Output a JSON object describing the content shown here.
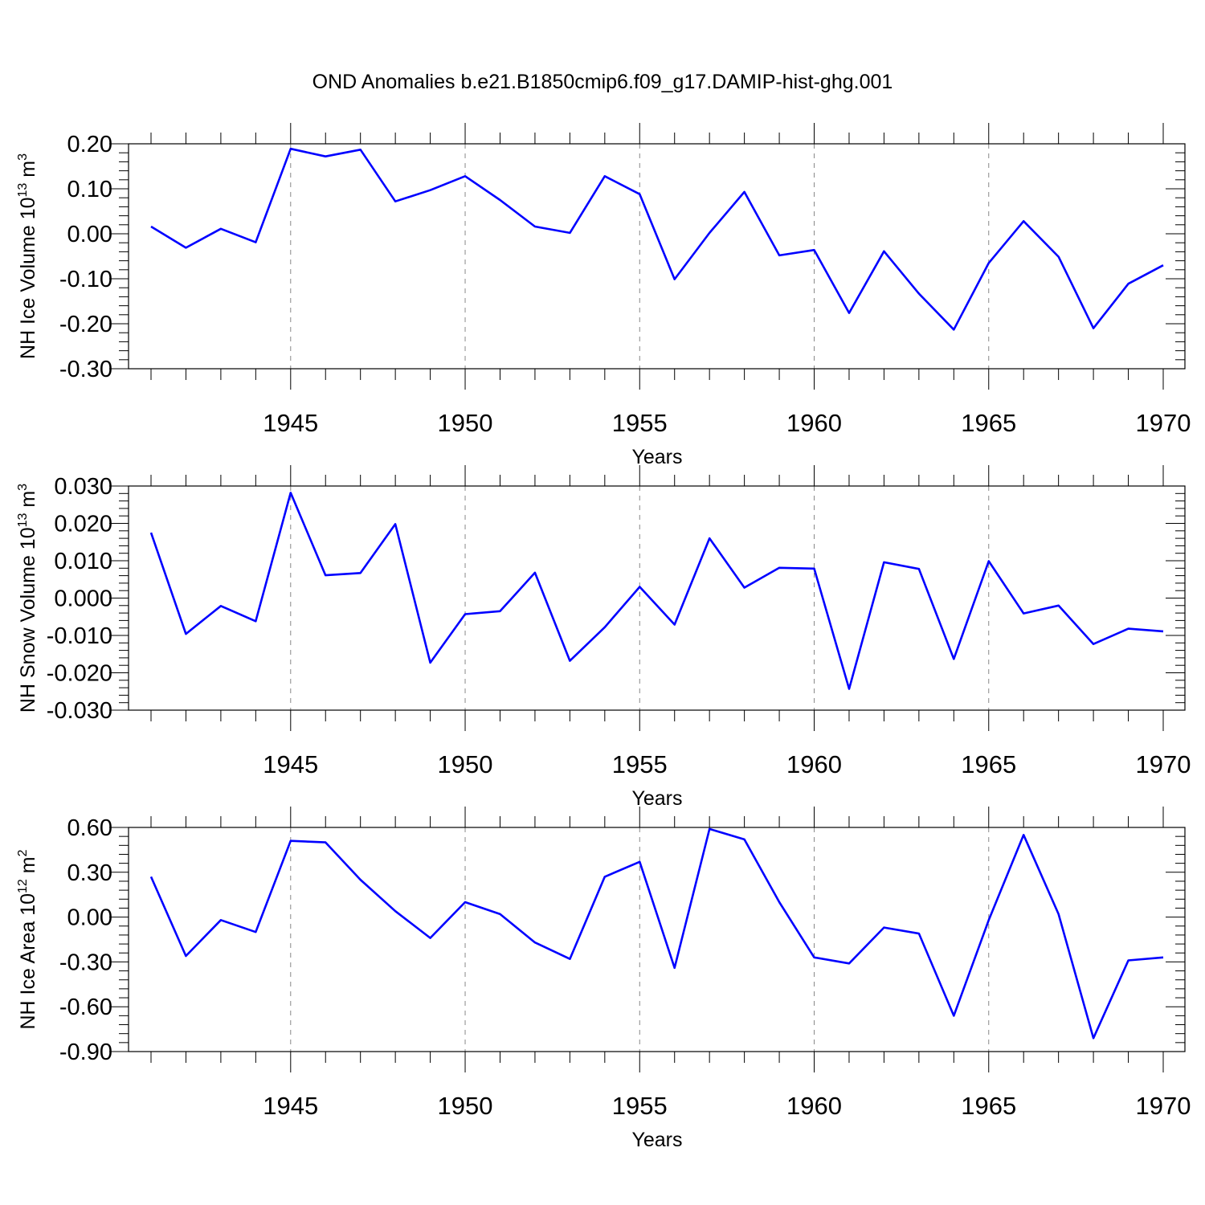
{
  "figure": {
    "title": "OND Anomalies b.e21.B1850cmip6.f09_g17.DAMIP-hist-ghg.001"
  },
  "chart_data": [
    {
      "type": "line",
      "ylabel": "NH Ice Volume 10",
      "ylabel_exp": "13",
      "ylabel_unit": " m",
      "ylabel_unit_exp": "3",
      "xlabel": "Years",
      "xlim": [
        1941,
        1970
      ],
      "ylim": [
        -0.3,
        0.2
      ],
      "yticks": [
        -0.3,
        -0.2,
        -0.1,
        0.0,
        0.1,
        0.2
      ],
      "ytick_labels": [
        "-0.30",
        "-0.20",
        "-0.10",
        "0.00",
        "0.10",
        "0.20"
      ],
      "xticks": [
        1945,
        1950,
        1955,
        1960,
        1965,
        1970
      ],
      "xtick_labels": [
        "1945",
        "1950",
        "1955",
        "1960",
        "1965",
        "1970"
      ],
      "grid": "vertical dashed at major x ticks",
      "color": "#0000ff",
      "x": [
        1941,
        1942,
        1943,
        1944,
        1945,
        1946,
        1947,
        1948,
        1949,
        1950,
        1951,
        1952,
        1953,
        1954,
        1955,
        1956,
        1957,
        1958,
        1959,
        1960,
        1961,
        1962,
        1963,
        1964,
        1965,
        1966,
        1967,
        1968,
        1969,
        1970
      ],
      "y": [
        0.016,
        -0.031,
        0.011,
        -0.019,
        0.189,
        0.172,
        0.187,
        0.072,
        0.097,
        0.128,
        0.075,
        0.016,
        0.002,
        0.128,
        0.088,
        -0.101,
        0.002,
        0.093,
        -0.048,
        -0.036,
        -0.176,
        -0.039,
        -0.133,
        -0.213,
        -0.065,
        0.028,
        -0.051,
        -0.21,
        -0.111,
        -0.07
      ]
    },
    {
      "type": "line",
      "ylabel": "NH Snow Volume 10",
      "ylabel_exp": "13",
      "ylabel_unit": " m",
      "ylabel_unit_exp": "3",
      "xlabel": "Years",
      "xlim": [
        1941,
        1970
      ],
      "ylim": [
        -0.03,
        0.03
      ],
      "yticks": [
        -0.03,
        -0.02,
        -0.01,
        0.0,
        0.01,
        0.02,
        0.03
      ],
      "ytick_labels": [
        "-0.030",
        "-0.020",
        "-0.010",
        "0.000",
        "0.010",
        "0.020",
        "0.030"
      ],
      "xticks": [
        1945,
        1950,
        1955,
        1960,
        1965,
        1970
      ],
      "xtick_labels": [
        "1945",
        "1950",
        "1955",
        "1960",
        "1965",
        "1970"
      ],
      "grid": "vertical dashed at major x ticks",
      "color": "#0000ff",
      "x": [
        1941,
        1942,
        1943,
        1944,
        1945,
        1946,
        1947,
        1948,
        1949,
        1950,
        1951,
        1952,
        1953,
        1954,
        1955,
        1956,
        1957,
        1958,
        1959,
        1960,
        1961,
        1962,
        1963,
        1964,
        1965,
        1966,
        1967,
        1968,
        1969,
        1970
      ],
      "y": [
        0.0175,
        -0.0096,
        -0.0021,
        -0.0062,
        0.0282,
        0.0061,
        0.0067,
        0.0198,
        -0.0173,
        -0.0043,
        -0.0035,
        0.0068,
        -0.0168,
        -0.0078,
        0.003,
        -0.0071,
        0.016,
        0.0028,
        0.0081,
        0.0079,
        -0.0243,
        0.0096,
        0.0078,
        -0.0163,
        0.0099,
        -0.0041,
        -0.002,
        -0.0123,
        -0.0082,
        -0.0089
      ]
    },
    {
      "type": "line",
      "ylabel": "NH Ice Area 10",
      "ylabel_exp": "12",
      "ylabel_unit": " m",
      "ylabel_unit_exp": "2",
      "xlabel": "Years",
      "xlim": [
        1941,
        1970
      ],
      "ylim": [
        -0.9,
        0.6
      ],
      "yticks": [
        -0.9,
        -0.6,
        -0.3,
        0.0,
        0.3,
        0.6
      ],
      "ytick_labels": [
        "-0.90",
        "-0.60",
        "-0.30",
        "0.00",
        "0.30",
        "0.60"
      ],
      "xticks": [
        1945,
        1950,
        1955,
        1960,
        1965,
        1970
      ],
      "xtick_labels": [
        "1945",
        "1950",
        "1955",
        "1960",
        "1965",
        "1970"
      ],
      "grid": "vertical dashed at major x ticks",
      "color": "#0000ff",
      "x": [
        1941,
        1942,
        1943,
        1944,
        1945,
        1946,
        1947,
        1948,
        1949,
        1950,
        1951,
        1952,
        1953,
        1954,
        1955,
        1956,
        1957,
        1958,
        1959,
        1960,
        1961,
        1962,
        1963,
        1964,
        1965,
        1966,
        1967,
        1968,
        1969,
        1970
      ],
      "y": [
        0.27,
        -0.26,
        -0.02,
        -0.1,
        0.51,
        0.5,
        0.25,
        0.04,
        -0.14,
        0.1,
        0.02,
        -0.17,
        -0.28,
        0.27,
        0.37,
        -0.34,
        0.59,
        0.52,
        0.1,
        -0.27,
        -0.31,
        -0.07,
        -0.11,
        -0.66,
        -0.02,
        0.55,
        0.02,
        -0.81,
        -0.29,
        -0.27
      ]
    }
  ]
}
